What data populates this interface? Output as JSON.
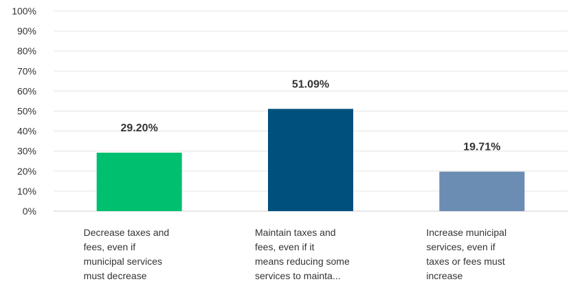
{
  "chart_data": {
    "type": "bar",
    "title": "",
    "xlabel": "",
    "ylabel": "",
    "ylim": [
      0,
      100
    ],
    "y_ticks": [
      0,
      10,
      20,
      30,
      40,
      50,
      60,
      70,
      80,
      90,
      100
    ],
    "y_tick_labels": [
      "0%",
      "10%",
      "20%",
      "30%",
      "40%",
      "50%",
      "60%",
      "70%",
      "80%",
      "90%",
      "100%"
    ],
    "grid": true,
    "legend": "none",
    "categories": [
      [
        "Decrease taxes and",
        "fees, even if",
        "municipal services",
        "must decrease"
      ],
      [
        "Maintain taxes and",
        "fees, even if it",
        "means reducing some",
        "services to mainta..."
      ],
      [
        "Increase municipal",
        "services, even if",
        "taxes or fees must",
        "increase"
      ]
    ],
    "values": [
      29.2,
      51.09,
      19.71
    ],
    "value_labels": [
      "29.20%",
      "51.09%",
      "19.71%"
    ],
    "colors": [
      "#00bf6f",
      "#00507e",
      "#6b8db3"
    ]
  }
}
